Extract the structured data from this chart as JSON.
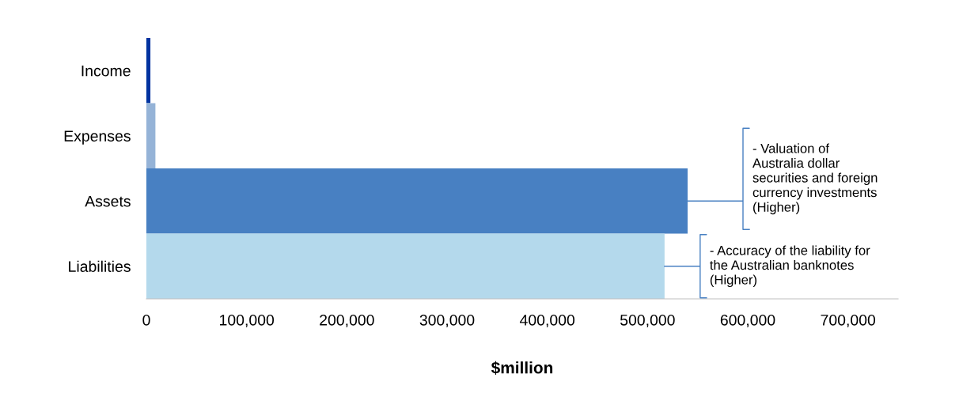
{
  "chart_data": {
    "type": "bar",
    "orientation": "horizontal",
    "xlabel": "$million",
    "categories": [
      "Income",
      "Expenses",
      "Assets",
      "Liabilities"
    ],
    "values": [
      4000,
      9000,
      540000,
      517000
    ],
    "colors": [
      "#0033a0",
      "#95b3d7",
      "#4880c2",
      "#b4d9ec"
    ],
    "xlim": [
      0,
      750000
    ],
    "xticks": [
      0,
      {
        "value": 100000,
        "label": "100,000"
      },
      {
        "value": 200000,
        "label": "200,000"
      },
      {
        "value": 300000,
        "label": "300,000"
      },
      {
        "value": 400000,
        "label": "400,000"
      },
      {
        "value": 500000,
        "label": "500,000"
      },
      {
        "value": 600000,
        "label": "600,000"
      },
      {
        "value": 700000,
        "label": "700,000"
      }
    ],
    "grid": false,
    "legend": false,
    "annotations": [
      {
        "text": "- Valuation of\nAustralia dollar\nsecurities and foreign\ncurrency investments\n(Higher)",
        "x": 540000,
        "y": "Assets"
      },
      {
        "text": "- Accuracy of the liability for\nthe Australian banknotes\n(Higher)",
        "x": 517000,
        "y": "Liabilities"
      }
    ]
  }
}
